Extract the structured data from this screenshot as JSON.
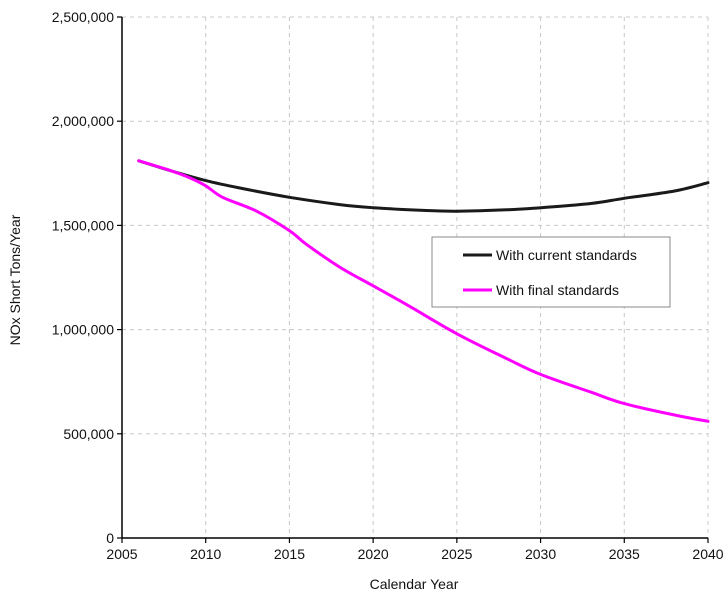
{
  "chart_data": {
    "type": "line",
    "title": "",
    "xlabel": "Calendar Year",
    "ylabel": "NOx Short Tons/Year",
    "xlim": [
      2005,
      2040
    ],
    "ylim": [
      0,
      2500000
    ],
    "x_ticks": [
      2005,
      2010,
      2015,
      2020,
      2025,
      2030,
      2035,
      2040
    ],
    "y_ticks": [
      0,
      500000,
      1000000,
      1500000,
      2000000,
      2500000
    ],
    "x_tick_labels": [
      "2005",
      "2010",
      "2015",
      "2020",
      "2025",
      "2030",
      "2035",
      "2040"
    ],
    "y_tick_labels": [
      "0",
      "500,000",
      "1,000,000",
      "1,500,000",
      "2,000,000",
      "2,500,000"
    ],
    "grid": "dashed, both axes",
    "legend_position": "center-right",
    "series": [
      {
        "name": "With current standards",
        "color": "#1a1a1a",
        "x": [
          2006,
          2008,
          2010,
          2012,
          2015,
          2018,
          2020,
          2023,
          2025,
          2028,
          2030,
          2033,
          2035,
          2038,
          2040
        ],
        "values": [
          1810000,
          1760000,
          1715000,
          1680000,
          1635000,
          1600000,
          1585000,
          1572000,
          1568000,
          1575000,
          1585000,
          1605000,
          1630000,
          1665000,
          1705000
        ]
      },
      {
        "name": "With final standards",
        "color": "#ff00ff",
        "x": [
          2006,
          2008,
          2009,
          2010,
          2011,
          2013,
          2015,
          2016,
          2018,
          2020,
          2022,
          2025,
          2028,
          2030,
          2033,
          2035,
          2038,
          2040
        ],
        "values": [
          1810000,
          1760000,
          1730000,
          1690000,
          1635000,
          1570000,
          1475000,
          1410000,
          1300000,
          1210000,
          1120000,
          980000,
          860000,
          785000,
          700000,
          645000,
          590000,
          560000
        ]
      }
    ]
  }
}
